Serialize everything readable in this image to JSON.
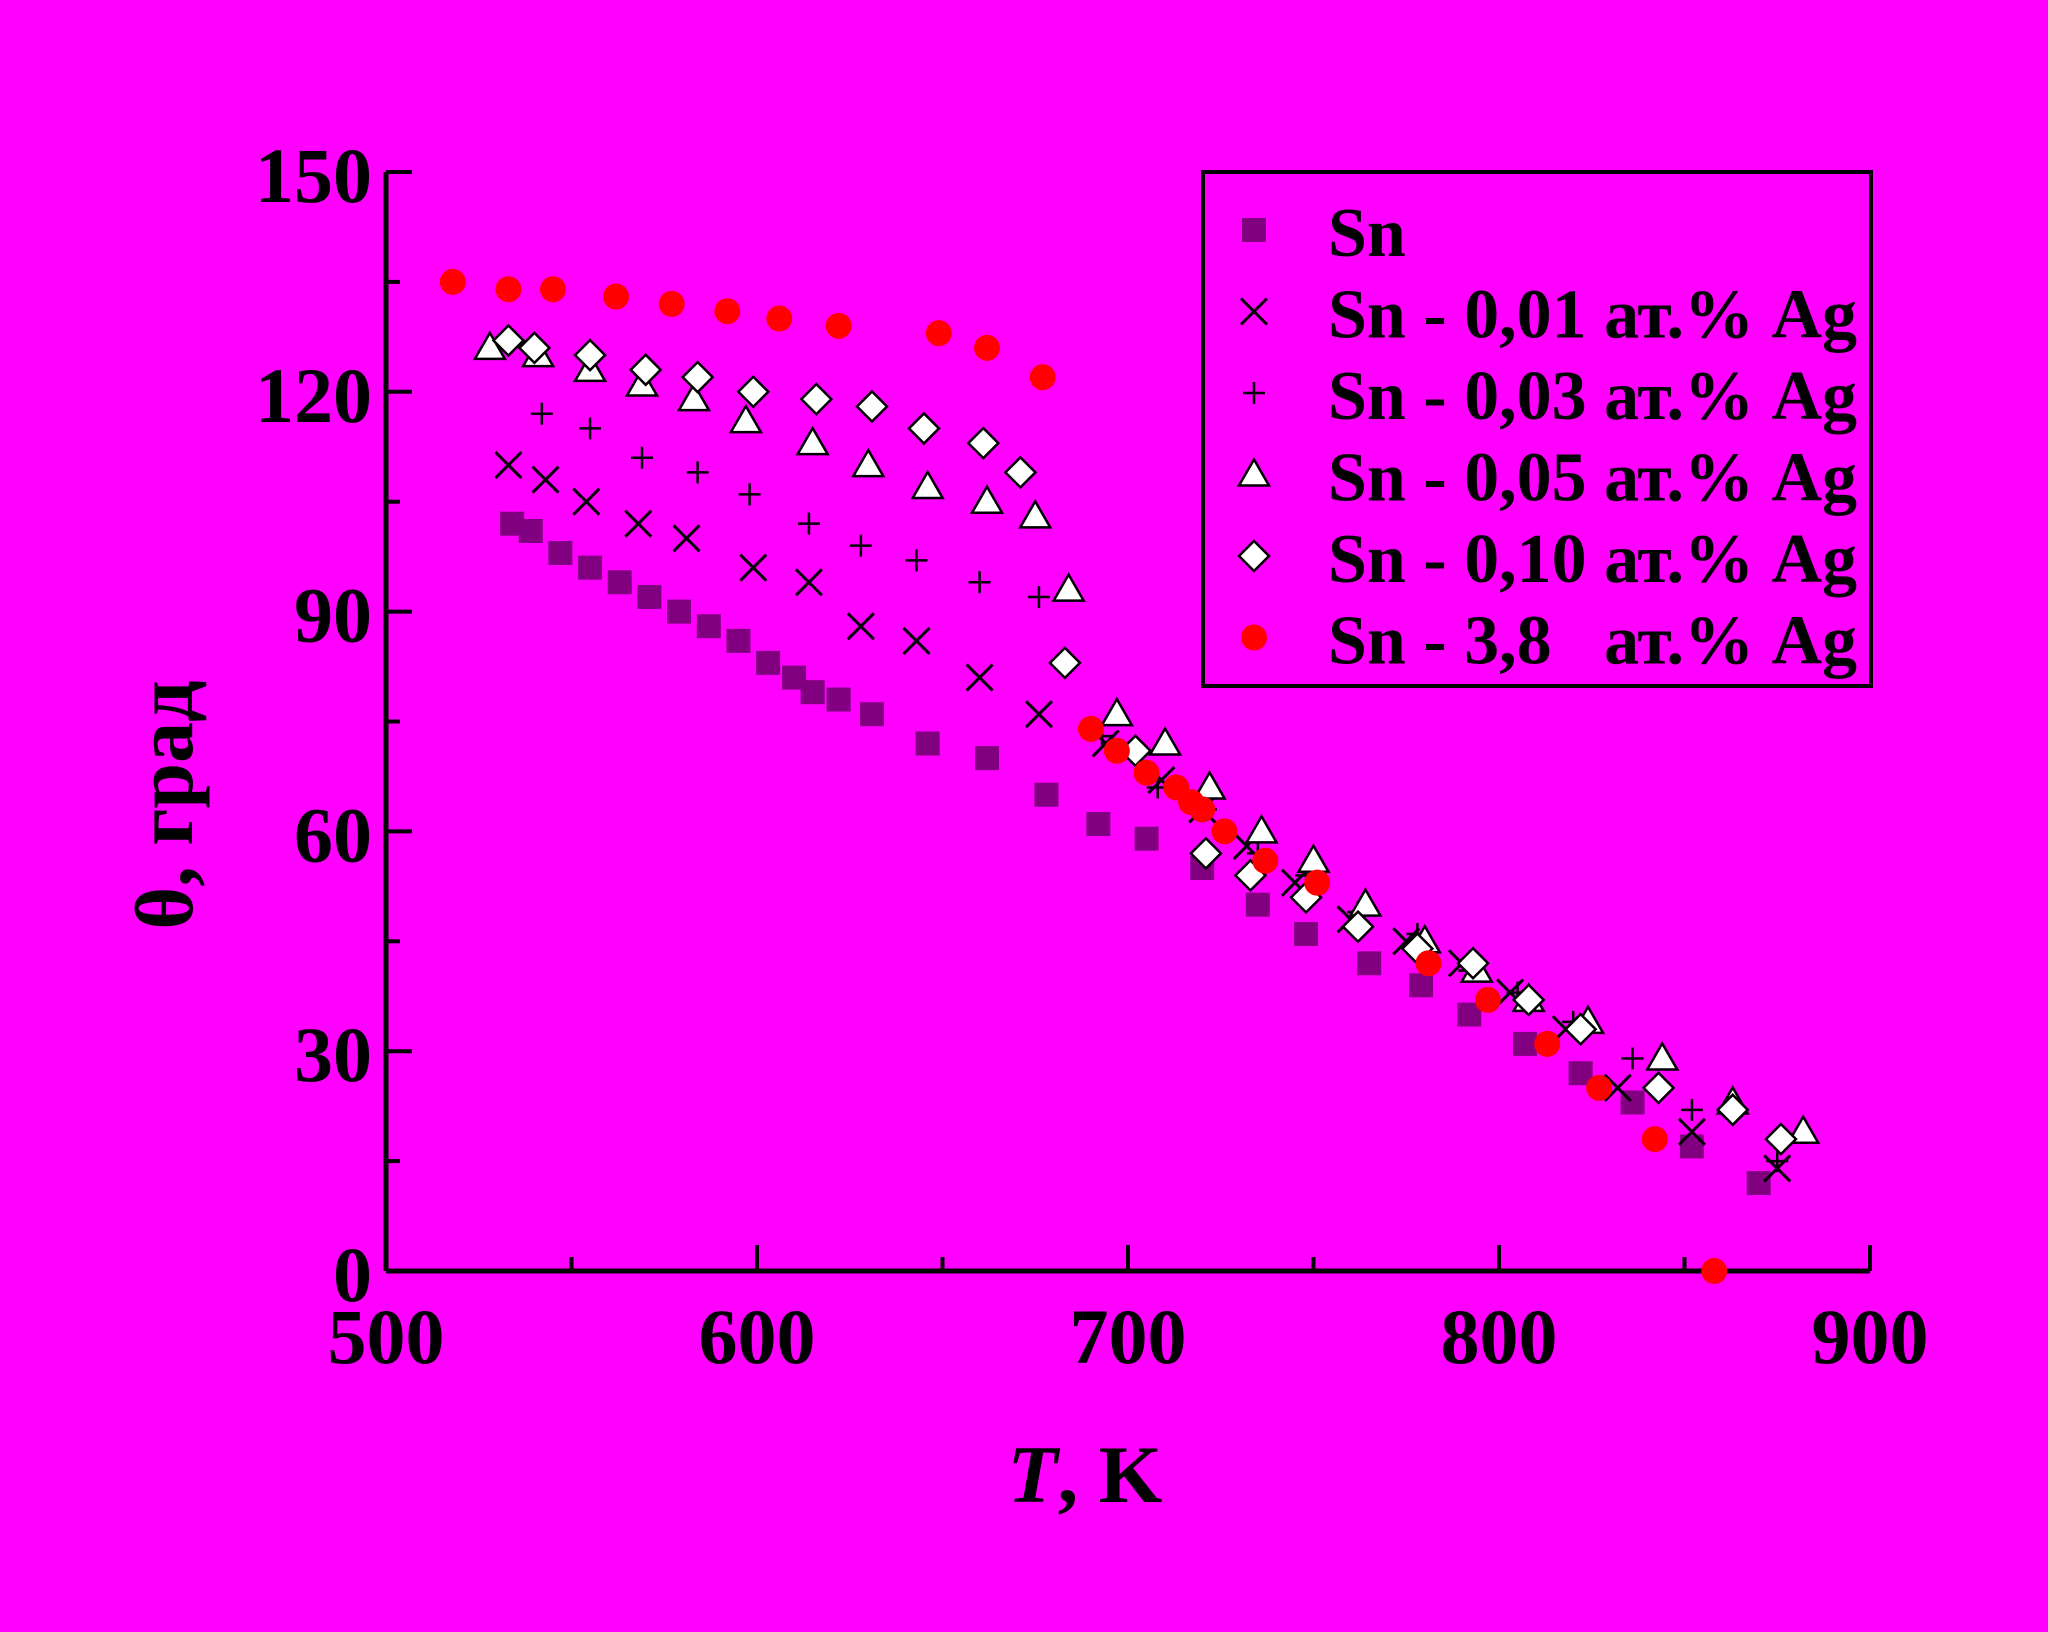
{
  "colors": {
    "background": "#FF00FF",
    "sn": "#800080",
    "ag38": "#FF0000",
    "mark": "#000000",
    "white": "#FFFFFF"
  },
  "chart_data": {
    "type": "scatter",
    "xlabel_var": "T",
    "xlabel_unit": ", K",
    "ylabel": "θ, град",
    "xlim": [
      500,
      900
    ],
    "ylim": [
      0,
      150
    ],
    "xticks": [
      "500",
      "600",
      "700",
      "800",
      "900"
    ],
    "yticks": [
      "0",
      "30",
      "60",
      "90",
      "120",
      "150"
    ],
    "grid": false,
    "legend_position": "top-right",
    "series": [
      {
        "name": "Sn",
        "marker": "square",
        "color": "#800080",
        "points": [
          [
            534,
            102
          ],
          [
            539,
            101
          ],
          [
            547,
            98
          ],
          [
            555,
            96
          ],
          [
            563,
            94
          ],
          [
            571,
            92
          ],
          [
            579,
            90
          ],
          [
            587,
            88
          ],
          [
            595,
            86
          ],
          [
            603,
            83
          ],
          [
            610,
            81
          ],
          [
            615,
            79
          ],
          [
            622,
            78
          ],
          [
            631,
            76
          ],
          [
            646,
            72
          ],
          [
            662,
            70
          ],
          [
            678,
            65
          ],
          [
            692,
            61
          ],
          [
            705,
            59
          ],
          [
            720,
            55
          ],
          [
            735,
            50
          ],
          [
            748,
            46
          ],
          [
            765,
            42
          ],
          [
            779,
            39
          ],
          [
            792,
            35
          ],
          [
            807,
            31
          ],
          [
            822,
            27
          ],
          [
            836,
            23
          ],
          [
            852,
            17
          ],
          [
            870,
            12
          ]
        ]
      },
      {
        "name": "Sn - 0,01 ат.% Ag",
        "marker": "x",
        "color": "#000000",
        "points": [
          [
            533,
            110
          ],
          [
            543,
            108
          ],
          [
            554,
            105
          ],
          [
            568,
            102
          ],
          [
            581,
            100
          ],
          [
            599,
            96
          ],
          [
            614,
            94
          ],
          [
            628,
            88
          ],
          [
            643,
            86
          ],
          [
            660,
            81
          ],
          [
            676,
            76
          ],
          [
            694,
            72
          ],
          [
            709,
            67
          ],
          [
            720,
            63
          ],
          [
            732,
            58
          ],
          [
            745,
            53
          ],
          [
            760,
            48
          ],
          [
            775,
            45
          ],
          [
            790,
            42
          ],
          [
            803,
            38
          ],
          [
            818,
            33
          ],
          [
            832,
            25
          ],
          [
            852,
            19
          ],
          [
            875,
            14
          ]
        ]
      },
      {
        "name": "Sn - 0,03 ат.% Ag",
        "marker": "plus",
        "color": "#000000",
        "points": [
          [
            542,
            117
          ],
          [
            555,
            115
          ],
          [
            569,
            111
          ],
          [
            584,
            109
          ],
          [
            598,
            106
          ],
          [
            614,
            102
          ],
          [
            628,
            99
          ],
          [
            643,
            97
          ],
          [
            660,
            94
          ],
          [
            676,
            92
          ],
          [
            693,
            73
          ],
          [
            708,
            66
          ],
          [
            721,
            63
          ],
          [
            735,
            57
          ],
          [
            748,
            54
          ],
          [
            762,
            49
          ],
          [
            778,
            46
          ],
          [
            792,
            41
          ],
          [
            805,
            38
          ],
          [
            820,
            34
          ],
          [
            836,
            29
          ],
          [
            852,
            22
          ],
          [
            875,
            15
          ]
        ]
      },
      {
        "name": "Sn - 0,05 ат.% Ag",
        "marker": "triangle",
        "color": "#000000",
        "points": [
          [
            528,
            126
          ],
          [
            541,
            125
          ],
          [
            555,
            123
          ],
          [
            569,
            121
          ],
          [
            583,
            119
          ],
          [
            597,
            116
          ],
          [
            615,
            113
          ],
          [
            630,
            110
          ],
          [
            646,
            107
          ],
          [
            662,
            105
          ],
          [
            675,
            103
          ],
          [
            684,
            93
          ],
          [
            697,
            76
          ],
          [
            710,
            72
          ],
          [
            722,
            66
          ],
          [
            736,
            60
          ],
          [
            750,
            56
          ],
          [
            764,
            50
          ],
          [
            780,
            45
          ],
          [
            794,
            41
          ],
          [
            808,
            37
          ],
          [
            824,
            34
          ],
          [
            844,
            29
          ],
          [
            863,
            23
          ],
          [
            882,
            19
          ]
        ]
      },
      {
        "name": "Sn - 0,10 ат.% Ag",
        "marker": "diamond",
        "color": "#000000",
        "points": [
          [
            533,
            127
          ],
          [
            540,
            126
          ],
          [
            555,
            125
          ],
          [
            570,
            123
          ],
          [
            584,
            122
          ],
          [
            599,
            120
          ],
          [
            616,
            119
          ],
          [
            631,
            118
          ],
          [
            645,
            115
          ],
          [
            661,
            113
          ],
          [
            671,
            109
          ],
          [
            683,
            83
          ],
          [
            702,
            71
          ],
          [
            721,
            57
          ],
          [
            733,
            54
          ],
          [
            748,
            51
          ],
          [
            762,
            47
          ],
          [
            778,
            44
          ],
          [
            793,
            42
          ],
          [
            808,
            37
          ],
          [
            822,
            33
          ],
          [
            843,
            25
          ],
          [
            863,
            22
          ],
          [
            876,
            18
          ]
        ]
      },
      {
        "name": "Sn - 3,8   ат.% Ag",
        "marker": "circle",
        "color": "#FF0000",
        "points": [
          [
            518,
            135
          ],
          [
            533,
            134
          ],
          [
            545,
            134
          ],
          [
            562,
            133
          ],
          [
            577,
            132
          ],
          [
            592,
            131
          ],
          [
            606,
            130
          ],
          [
            622,
            129
          ],
          [
            649,
            128
          ],
          [
            662,
            126
          ],
          [
            677,
            122
          ],
          [
            690,
            74
          ],
          [
            697,
            71
          ],
          [
            705,
            68
          ],
          [
            713,
            66
          ],
          [
            717,
            64
          ],
          [
            720,
            63
          ],
          [
            726,
            60
          ],
          [
            737,
            56
          ],
          [
            751,
            53
          ],
          [
            781,
            42
          ],
          [
            797,
            37
          ],
          [
            813,
            31
          ],
          [
            827,
            25
          ],
          [
            842,
            18
          ],
          [
            858,
            0
          ]
        ]
      }
    ]
  }
}
